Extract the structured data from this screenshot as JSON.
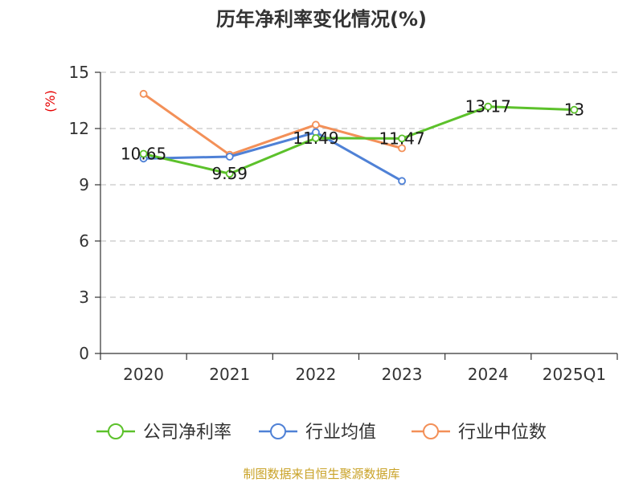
{
  "chart_data": {
    "type": "line",
    "title": "历年净利率变化情况(%)",
    "ylabel": "(%)",
    "categories": [
      "2020",
      "2021",
      "2022",
      "2023",
      "2024",
      "2025Q1"
    ],
    "ylim": [
      0,
      15
    ],
    "yticks": [
      0,
      3,
      6,
      9,
      12,
      15
    ],
    "grid": true,
    "legend_position": "bottom",
    "series": [
      {
        "name": "公司净利率",
        "color": "#5cc12b",
        "values": [
          10.65,
          9.59,
          11.49,
          11.47,
          13.17,
          13
        ],
        "labels": [
          "10.65",
          "9.59",
          "11.49",
          "11.47",
          "13.17",
          "13"
        ]
      },
      {
        "name": "行业均值",
        "color": "#4f81d6",
        "values": [
          10.4,
          10.5,
          11.8,
          9.2,
          null,
          null
        ]
      },
      {
        "name": "行业中位数",
        "color": "#f39058",
        "values": [
          13.85,
          10.6,
          12.2,
          10.95,
          null,
          null
        ]
      }
    ]
  },
  "footer": {
    "source": "制图数据来自恒生聚源数据库"
  }
}
